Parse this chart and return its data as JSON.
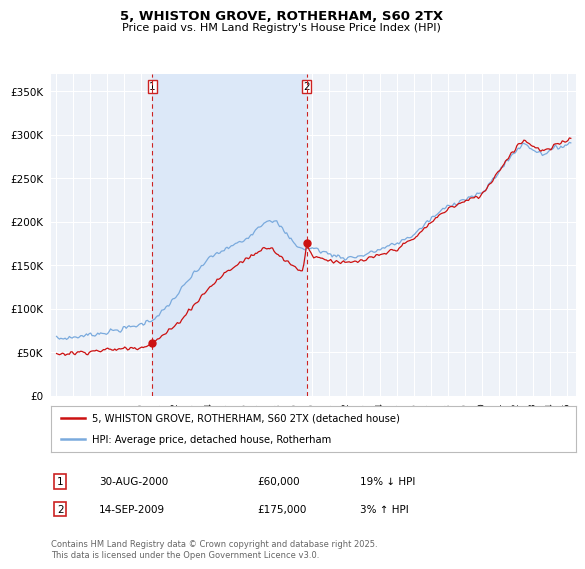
{
  "title": "5, WHISTON GROVE, ROTHERHAM, S60 2TX",
  "subtitle": "Price paid vs. HM Land Registry's House Price Index (HPI)",
  "legend_line1": "5, WHISTON GROVE, ROTHERHAM, S60 2TX (detached house)",
  "legend_line2": "HPI: Average price, detached house, Rotherham",
  "footer": "Contains HM Land Registry data © Crown copyright and database right 2025.\nThis data is licensed under the Open Government Licence v3.0.",
  "annotation1_label": "1",
  "annotation1_date": "30-AUG-2000",
  "annotation1_price": "£60,000",
  "annotation1_hpi": "19% ↓ HPI",
  "annotation2_label": "2",
  "annotation2_date": "14-SEP-2009",
  "annotation2_price": "£175,000",
  "annotation2_hpi": "3% ↑ HPI",
  "sale1_year": 2000.667,
  "sale1_price": 60000,
  "sale2_year": 2009.708,
  "sale2_price": 175000,
  "hpi_color": "#7aaadd",
  "price_color": "#cc1111",
  "sale_dot_color": "#cc1111",
  "vline_color": "#cc2222",
  "shade_color": "#dce8f8",
  "ylim": [
    0,
    370000
  ],
  "yticks": [
    0,
    50000,
    100000,
    150000,
    200000,
    250000,
    300000,
    350000
  ],
  "background_color": "#ffffff",
  "plot_bg_color": "#eef2f8",
  "grid_color": "#ffffff",
  "xlim_start": 1995.0,
  "xlim_end": 2025.5
}
